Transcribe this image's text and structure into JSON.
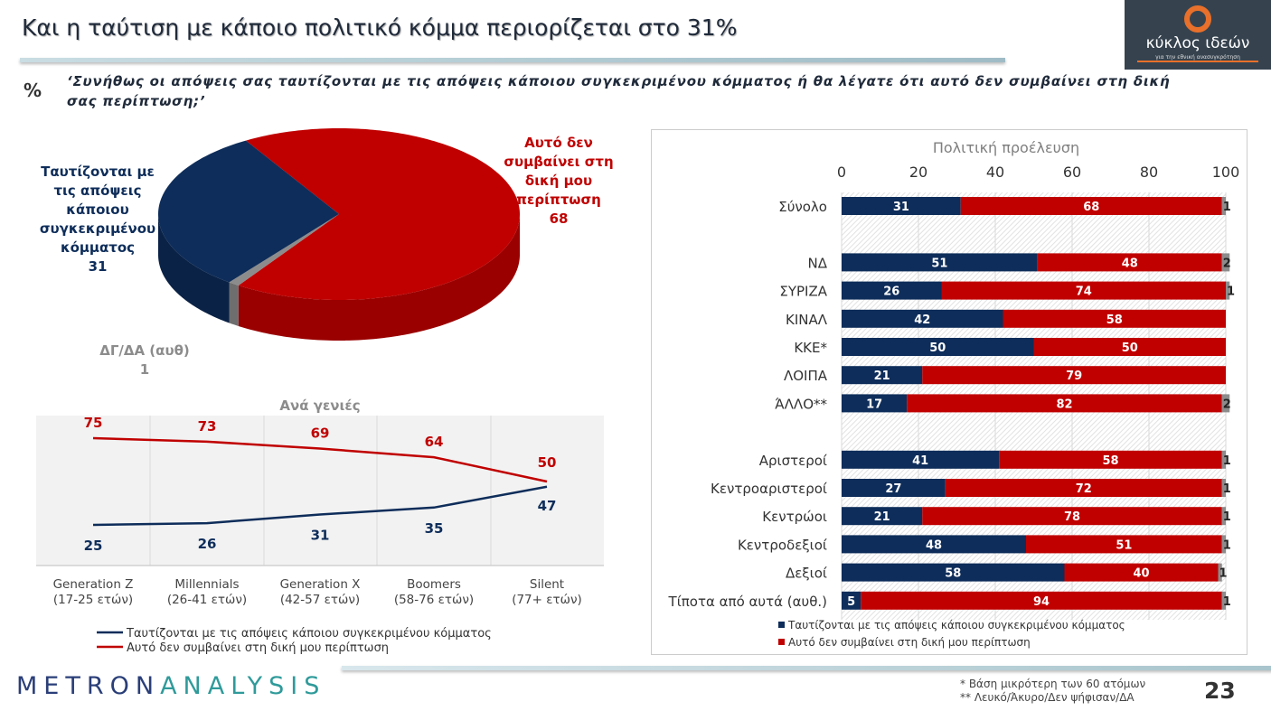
{
  "header": {
    "title": "Και η ταύτιση με κάποιο πολιτικό κόμμα περιορίζεται στο 31%",
    "percent_symbol": "%",
    "question": "‘Συνήθως οι απόψεις σας ταυτίζονται με τις απόψεις κάποιου συγκεκριμένου κόμματος ή θα λέγατε ότι αυτό δεν συμβαίνει στη δική σας περίπτωση;’"
  },
  "logo": {
    "name": "κύκλος ιδεών",
    "tagline": "για την εθνική ανασυγκρότηση"
  },
  "colors": {
    "navy": "#0e2d5a",
    "red": "#c00000",
    "gray": "#8c8c8c"
  },
  "chart_data": [
    {
      "type": "pie",
      "labels": [
        "Ταυτίζονται με τις απόψεις κάποιου συγκεκριμένου κόμματος",
        "Αυτό δεν συμβαίνει στη δική μου περίπτωση",
        "ΔΓ/ΔΑ (αυθ)"
      ],
      "values": [
        31,
        68,
        1
      ],
      "colors": [
        "#0e2d5a",
        "#c00000",
        "#8c8c8c"
      ]
    },
    {
      "type": "line",
      "title": "Ανά γενιές",
      "categories": [
        "Generation Z (17-25 ετών)",
        "Millennials (26-41 ετών)",
        "Generation X (42-57 ετών)",
        "Boomers (58-76 ετών)",
        "Silent (77+ ετών)"
      ],
      "series": [
        {
          "name": "Ταυτίζονται με τις απόψεις κάποιου συγκεκριμένου κόμματος",
          "values": [
            25,
            26,
            31,
            35,
            47
          ],
          "color": "#0e2d5a"
        },
        {
          "name": "Αυτό δεν συμβαίνει στη δική μου περίπτωση",
          "values": [
            75,
            73,
            69,
            64,
            50
          ],
          "color": "#c00000"
        }
      ],
      "legend": "bottom",
      "grid": true
    },
    {
      "type": "bar",
      "stacked": true,
      "orientation": "horizontal",
      "title": "Πολιτική προέλευση",
      "xlim": [
        0,
        100
      ],
      "xticks": [
        "0",
        "20",
        "40",
        "60",
        "80",
        "100"
      ],
      "categories": [
        "Σύνολο",
        "",
        "ΝΔ",
        "ΣΥΡΙΖΑ",
        "ΚΙΝΑΛ",
        "ΚΚΕ*",
        "ΛΟΙΠΑ",
        "ΆΛΛΟ**",
        "",
        "Αριστεροί",
        "Κεντροαριστεροί",
        "Κεντρώοι",
        "Κεντροδεξιοί",
        "Δεξιοί",
        "Τίποτα από αυτά (αυθ.)"
      ],
      "series": [
        {
          "name": "Ταυτίζονται με τις απόψεις κάποιου συγκεκριμένου κόμματος",
          "values": [
            31,
            null,
            51,
            26,
            42,
            50,
            21,
            17,
            null,
            41,
            27,
            21,
            48,
            58,
            5
          ],
          "color": "#0e2d5a"
        },
        {
          "name": "Αυτό δεν συμβαίνει στη δική μου περίπτωση",
          "values": [
            68,
            null,
            48,
            74,
            58,
            50,
            79,
            82,
            null,
            58,
            72,
            78,
            51,
            40,
            94
          ],
          "color": "#c00000"
        },
        {
          "values": [
            1,
            null,
            2,
            1,
            null,
            null,
            null,
            2,
            null,
            1,
            1,
            1,
            1,
            1,
            1
          ],
          "color": "#8c8c8c"
        }
      ],
      "legend": "bottom-left"
    }
  ],
  "footer": {
    "brand_a": "METRON",
    "brand_b": "ANALYSIS",
    "note1": "*  Βάση μικρότερη των 60 ατόμων",
    "note2": "** Λευκό/Άκυρο/Δεν ψήφισαν/ΔΑ",
    "page": "23"
  }
}
